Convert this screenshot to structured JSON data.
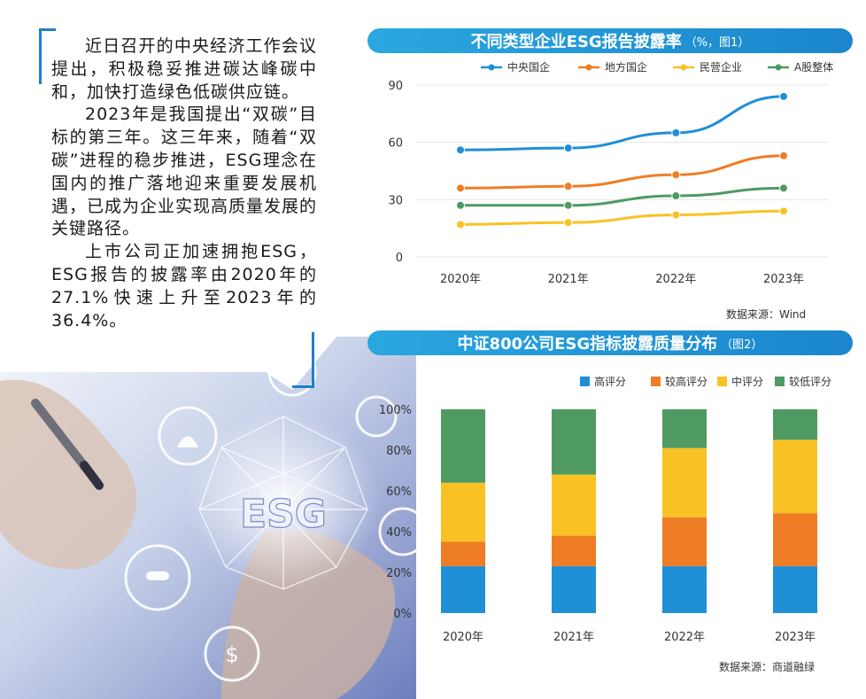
{
  "article": {
    "paragraphs": [
      "近日召开的中央经济工作会议提出，积极稳妥推进碳达峰碳中和，加快打造绿色低碳供应链。",
      "2023年是我国提出“双碳”目标的第三年。这三年来，随着“双碳”进程的稳步推进，ESG理念在国内的推广落地迎来重要发展机遇，已成为企业实现高质量发展的关键路径。",
      "上市公司正加速拥抱ESG，ESG报告的披露率由2020年的27.1%快速上升至2023年的36.4%。"
    ]
  },
  "illustration": {
    "center_text": "ESG"
  },
  "colors": {
    "blue": "#1f8fd6",
    "orange": "#ef7d26",
    "yellow": "#f9c224",
    "green": "#4f9a62",
    "title_bg": "#2196dc"
  },
  "chart_data": [
    {
      "type": "line",
      "title": "不同类型企业ESG报告披露率",
      "title_note": "（%，图1）",
      "x": [
        "2020年",
        "2021年",
        "2022年",
        "2023年"
      ],
      "ylim": [
        0,
        90
      ],
      "yticks": [
        0,
        30,
        60,
        90
      ],
      "series": [
        {
          "name": "中央国企",
          "values": [
            56,
            57,
            65,
            84
          ],
          "color": "#1f8fd6"
        },
        {
          "name": "地方国企",
          "values": [
            36,
            37,
            43,
            53
          ],
          "color": "#ef7d26"
        },
        {
          "name": "民营企业",
          "values": [
            17,
            18,
            22,
            24
          ],
          "color": "#f9c224"
        },
        {
          "name": "A股整体",
          "values": [
            27,
            27,
            32,
            36
          ],
          "color": "#4f9a62"
        }
      ],
      "legend_position": "top",
      "source": "数据来源：Wind"
    },
    {
      "type": "bar",
      "stacked": true,
      "title": "中证800公司ESG指标披露质量分布",
      "title_note": "（图2）",
      "categories": [
        "2020年",
        "2021年",
        "2022年",
        "2023年"
      ],
      "ylim": [
        0,
        100
      ],
      "yticks": [
        "0%",
        "20%",
        "40%",
        "60%",
        "80%",
        "100%"
      ],
      "series": [
        {
          "name": "高评分",
          "values": [
            23,
            23,
            23,
            23
          ],
          "color": "#1f8fd6"
        },
        {
          "name": "较高评分",
          "values": [
            12,
            15,
            24,
            26
          ],
          "color": "#ef7d26"
        },
        {
          "name": "中评分",
          "values": [
            29,
            30,
            34,
            36
          ],
          "color": "#f9c224"
        },
        {
          "name": "较低评分",
          "values": [
            36,
            32,
            19,
            15
          ],
          "color": "#4f9a62"
        }
      ],
      "legend_position": "top",
      "source": "数据来源：商道融绿"
    }
  ]
}
